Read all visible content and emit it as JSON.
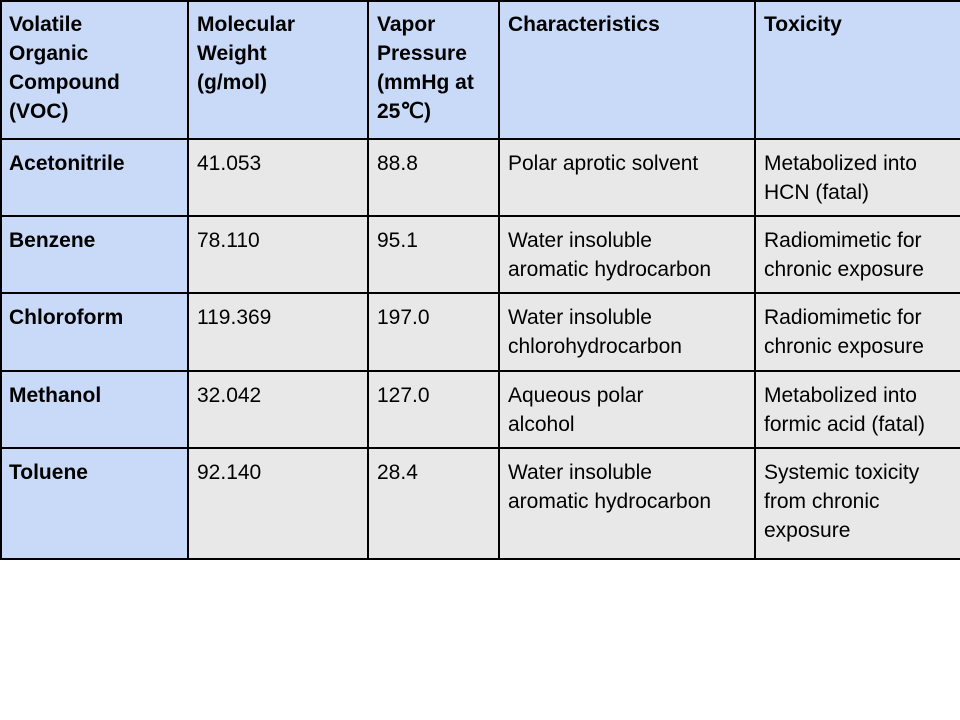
{
  "table": {
    "headers": [
      "Volatile\nOrganic\nCompound\n(VOC)",
      "Molecular\nWeight\n(g/mol)",
      "Vapor\nPressure\n(mmHg at\n25℃)",
      "Characteristics",
      "Toxicity"
    ],
    "rows": [
      [
        "Acetonitrile",
        "41.053",
        "88.8",
        "Polar aprotic solvent",
        "Metabolized into\nHCN (fatal)"
      ],
      [
        "Benzene",
        "78.110",
        "95.1",
        "Water insoluble\naromatic hydrocarbon",
        "Radiomimetic for\nchronic exposure"
      ],
      [
        "Chloroform",
        "119.369",
        "197.0",
        "Water insoluble\nchlorohydrocarbon",
        "Radiomimetic for\nchronic exposure"
      ],
      [
        "Methanol",
        "32.042",
        "127.0",
        "Aqueous polar\nalcohol",
        "Metabolized into\nformic acid (fatal)"
      ],
      [
        "Toluene",
        "92.140",
        "28.4",
        "Water insoluble\naromatic hydrocarbon",
        "Systemic toxicity\nfrom chronic\nexposure"
      ]
    ],
    "colors": {
      "header_bg": "#c9daf8",
      "body_bg": "#e8e8e8",
      "border": "#000000"
    }
  }
}
